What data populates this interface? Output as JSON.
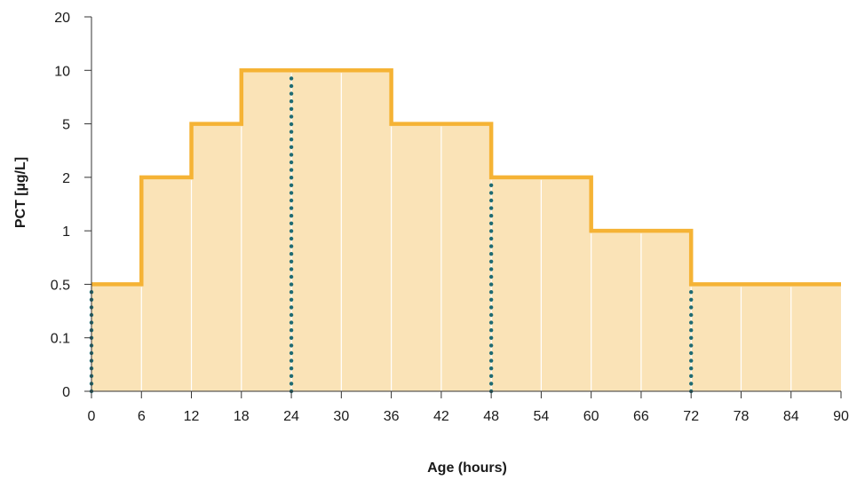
{
  "chart_data": {
    "type": "area",
    "title": "",
    "xlabel": "Age (hours)",
    "ylabel": "PCT [µg/L]",
    "x_ticks": [
      0,
      6,
      12,
      18,
      24,
      30,
      36,
      42,
      48,
      54,
      60,
      66,
      72,
      78,
      84,
      90
    ],
    "xlim": [
      0,
      90
    ],
    "y_ticks": [
      "0",
      "0.1",
      "0.5",
      "1",
      "2",
      "5",
      "10",
      "20"
    ],
    "y_scale": "categorical (equally spaced tick values)",
    "series": [
      {
        "values": [
          {
            "x_start": 0,
            "x_end": 6,
            "y": 0.5
          },
          {
            "x_start": 6,
            "x_end": 12,
            "y": 2
          },
          {
            "x_start": 12,
            "x_end": 18,
            "y": 5
          },
          {
            "x_start": 18,
            "x_end": 36,
            "y": 10
          },
          {
            "x_start": 36,
            "x_end": 48,
            "y": 5
          },
          {
            "x_start": 48,
            "x_end": 60,
            "y": 2
          },
          {
            "x_start": 60,
            "x_end": 72,
            "y": 1
          },
          {
            "x_start": 72,
            "x_end": 90,
            "y": 0.5
          }
        ]
      }
    ],
    "markers": [
      {
        "x": 0,
        "y": 0.5
      },
      {
        "x": 24,
        "y": 10
      },
      {
        "x": 48,
        "y": 2
      },
      {
        "x": 72,
        "y": 0.5
      }
    ],
    "grid": "vertical lines inside filled area",
    "colors": {
      "line": "#F5B335",
      "fill": "#FAE3B7",
      "markers": "#1F6B72",
      "axis": "#333333",
      "grid": "#FFFFFF"
    }
  }
}
